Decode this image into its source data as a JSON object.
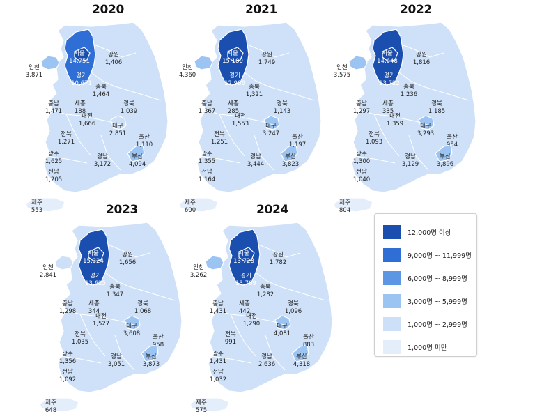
{
  "legend": {
    "items": [
      {
        "label": "12,000명 이상",
        "color": "#1a4faf"
      },
      {
        "label": "9,000명 ~ 11,999명",
        "color": "#2f6ed4"
      },
      {
        "label": "6,000명 ~ 8,999명",
        "color": "#5d97e4"
      },
      {
        "label": "3,000명 ~ 5,999명",
        "color": "#9cc4f2"
      },
      {
        "label": "1,000명 ~ 2,999명",
        "color": "#cde0f8"
      },
      {
        "label": "1,000명 미만",
        "color": "#e4eefb"
      }
    ]
  },
  "region_names": {
    "seoul": "서울",
    "incheon": "인천",
    "gyeonggi": "경기",
    "gangwon": "강원",
    "chungbuk": "충북",
    "chungnam": "충남",
    "sejong": "세종",
    "daejeon": "대전",
    "gyeongbuk": "경북",
    "daegu": "대구",
    "ulsan": "울산",
    "jeonbuk": "전북",
    "gwangju": "광주",
    "gyeongnam": "경남",
    "busan": "부산",
    "jeonnam": "전남",
    "jeju": "제주"
  },
  "years": [
    {
      "year": "2020",
      "values": {
        "seoul": "14,751",
        "gangwon": "1,406",
        "incheon": "3,871",
        "gyeonggi": "10,671",
        "chungbuk": "1,464",
        "chungnam": "1,471",
        "sejong": "188",
        "gyeongbuk": "1,039",
        "daejeon": "1,666",
        "daegu": "2,851",
        "ulsan": "1,110",
        "jeonbuk": "1,271",
        "gwangju": "1,625",
        "gyeongnam": "3,172",
        "busan": "4,094",
        "jeonnam": "1,205",
        "jeju": "553"
      }
    },
    {
      "year": "2021",
      "values": {
        "seoul": "15,180",
        "gangwon": "1,749",
        "incheon": "4,360",
        "gyeonggi": "12,986",
        "chungbuk": "1,321",
        "chungnam": "1,367",
        "sejong": "285",
        "gyeongbuk": "1,143",
        "daejeon": "1,553",
        "daegu": "3,247",
        "ulsan": "1,197",
        "jeonbuk": "1,251",
        "gwangju": "1,355",
        "gyeongnam": "3,444",
        "busan": "3,823",
        "jeonnam": "1,164",
        "jeju": "600"
      }
    },
    {
      "year": "2022",
      "values": {
        "seoul": "14,648",
        "gangwon": "1,816",
        "incheon": "3,575",
        "gyeonggi": "13,722",
        "chungbuk": "1,236",
        "chungnam": "1,297",
        "sejong": "335",
        "gyeongbuk": "1,185",
        "daejeon": "1,359",
        "daegu": "3,293",
        "ulsan": "954",
        "jeonbuk": "1,093",
        "gwangju": "1,300",
        "gyeongnam": "3,129",
        "busan": "3,896",
        "jeonnam": "1,040",
        "jeju": "804"
      }
    },
    {
      "year": "2023",
      "values": {
        "seoul": "15,324",
        "gangwon": "1,656",
        "incheon": "2,841",
        "gyeonggi": "13,625",
        "chungbuk": "1,347",
        "chungnam": "1,298",
        "sejong": "344",
        "gyeongbuk": "1,068",
        "daejeon": "1,527",
        "daegu": "3,608",
        "ulsan": "958",
        "jeonbuk": "1,035",
        "gwangju": "1,356",
        "gyeongnam": "3,051",
        "busan": "3,873",
        "jeonnam": "1,092",
        "jeju": "648"
      }
    },
    {
      "year": "2024",
      "values": {
        "seoul": "13,728",
        "gangwon": "1,782",
        "incheon": "3,262",
        "gyeonggi": "13,789",
        "chungbuk": "1,282",
        "chungnam": "1,431",
        "sejong": "442",
        "gyeongbuk": "1,096",
        "daejeon": "1,290",
        "daegu": "4,081",
        "ulsan": "883",
        "jeonbuk": "991",
        "gwangju": "1,431",
        "gyeongnam": "2,636",
        "busan": "4,318",
        "jeonnam": "1,032",
        "jeju": "575"
      }
    }
  ]
}
